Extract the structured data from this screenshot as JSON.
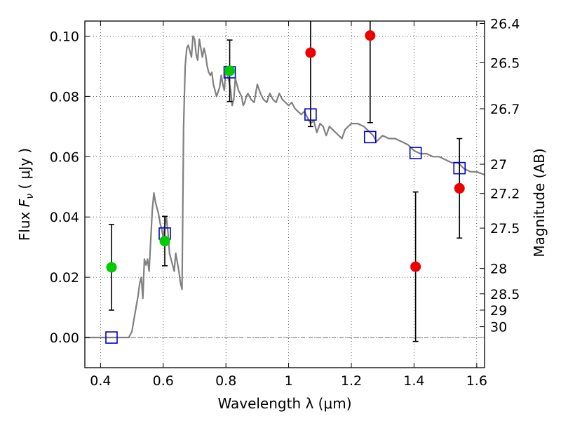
{
  "chart_data": {
    "type": "scatter",
    "xlabel": "Wavelength  λ (μm)",
    "ylabel": "Flux  F_ν  ( μJy )",
    "ylabel_parts": {
      "pre": "Flux  ",
      "sym": "F",
      "sub": "ν",
      "post": "  (  μJy )"
    },
    "y2label": "Magnitude (AB)",
    "xlim": [
      0.35,
      1.625
    ],
    "ylim": [
      -0.01,
      0.105
    ],
    "grid": true,
    "grid_style": "dotted",
    "x_ticks": [
      0.4,
      0.6,
      0.8,
      1.0,
      1.2,
      1.4,
      1.6
    ],
    "x_tick_labels": [
      "0.4",
      "0.6",
      "0.8",
      "1",
      "1.2",
      "1.4",
      "1.6"
    ],
    "y_ticks": [
      0.0,
      0.02,
      0.04,
      0.06,
      0.08,
      0.1
    ],
    "y_tick_labels": [
      "0.00",
      "0.02",
      "0.04",
      "0.06",
      "0.08",
      "0.10"
    ],
    "y2_ticks": [
      {
        "flux": 0.1042,
        "label": "26.4"
      },
      {
        "flux": 0.0912,
        "label": "26.5"
      },
      {
        "flux": 0.0759,
        "label": "26.7"
      },
      {
        "flux": 0.0575,
        "label": "27"
      },
      {
        "flux": 0.0478,
        "label": "27.2"
      },
      {
        "flux": 0.0363,
        "label": "27.5"
      },
      {
        "flux": 0.0229,
        "label": "28"
      },
      {
        "flux": 0.0145,
        "label": "28.5"
      },
      {
        "flux": 0.0091,
        "label": "29"
      },
      {
        "flux": 0.0036,
        "label": "30"
      }
    ],
    "zero_line": 0.0,
    "model_spectrum": {
      "color": "#808080",
      "x": [
        0.35,
        0.49,
        0.5,
        0.51,
        0.52,
        0.525,
        0.53,
        0.535,
        0.54,
        0.545,
        0.55,
        0.555,
        0.56,
        0.565,
        0.57,
        0.575,
        0.58,
        0.585,
        0.59,
        0.595,
        0.6,
        0.605,
        0.61,
        0.615,
        0.62,
        0.625,
        0.63,
        0.635,
        0.64,
        0.645,
        0.65,
        0.655,
        0.66,
        0.665,
        0.67,
        0.675,
        0.68,
        0.685,
        0.69,
        0.695,
        0.7,
        0.705,
        0.71,
        0.715,
        0.72,
        0.725,
        0.73,
        0.735,
        0.74,
        0.745,
        0.75,
        0.755,
        0.76,
        0.77,
        0.78,
        0.785,
        0.79,
        0.795,
        0.8,
        0.805,
        0.81,
        0.815,
        0.82,
        0.825,
        0.83,
        0.84,
        0.85,
        0.855,
        0.86,
        0.865,
        0.87,
        0.875,
        0.88,
        0.89,
        0.9,
        0.91,
        0.92,
        0.93,
        0.94,
        0.95,
        0.96,
        0.97,
        0.98,
        0.99,
        1.0,
        1.01,
        1.02,
        1.03,
        1.04,
        1.05,
        1.06,
        1.07,
        1.08,
        1.09,
        1.1,
        1.11,
        1.12,
        1.13,
        1.14,
        1.15,
        1.16,
        1.17,
        1.18,
        1.19,
        1.2,
        1.22,
        1.24,
        1.26,
        1.27,
        1.28,
        1.3,
        1.32,
        1.34,
        1.36,
        1.38,
        1.4,
        1.42,
        1.44,
        1.46,
        1.48,
        1.5,
        1.52,
        1.54,
        1.56,
        1.58,
        1.6,
        1.625
      ],
      "y": [
        0.0,
        0.0,
        0.002,
        0.008,
        0.014,
        0.018,
        0.02,
        0.013,
        0.026,
        0.024,
        0.026,
        0.022,
        0.032,
        0.042,
        0.048,
        0.045,
        0.043,
        0.041,
        0.038,
        0.036,
        0.033,
        0.037,
        0.04,
        0.035,
        0.028,
        0.026,
        0.024,
        0.022,
        0.028,
        0.025,
        0.022,
        0.018,
        0.016,
        0.07,
        0.09,
        0.096,
        0.097,
        0.095,
        0.093,
        0.1,
        0.099,
        0.094,
        0.092,
        0.099,
        0.096,
        0.093,
        0.096,
        0.094,
        0.09,
        0.088,
        0.087,
        0.088,
        0.084,
        0.08,
        0.083,
        0.087,
        0.084,
        0.082,
        0.09,
        0.087,
        0.085,
        0.082,
        0.077,
        0.079,
        0.086,
        0.082,
        0.08,
        0.077,
        0.078,
        0.08,
        0.081,
        0.08,
        0.079,
        0.078,
        0.084,
        0.081,
        0.079,
        0.078,
        0.081,
        0.079,
        0.078,
        0.081,
        0.079,
        0.078,
        0.077,
        0.078,
        0.076,
        0.075,
        0.074,
        0.075,
        0.073,
        0.071,
        0.072,
        0.068,
        0.071,
        0.07,
        0.067,
        0.07,
        0.069,
        0.068,
        0.067,
        0.066,
        0.069,
        0.07,
        0.071,
        0.071,
        0.07,
        0.068,
        0.067,
        0.065,
        0.067,
        0.066,
        0.066,
        0.065,
        0.064,
        0.062,
        0.061,
        0.061,
        0.06,
        0.06,
        0.059,
        0.058,
        0.058,
        0.056,
        0.055,
        0.055,
        0.054
      ]
    },
    "model_photometry": {
      "color": "#0000cc",
      "marker": "square-open",
      "points": [
        {
          "x": 0.435,
          "y": 0.0
        },
        {
          "x": 0.605,
          "y": 0.0345
        },
        {
          "x": 0.812,
          "y": 0.088
        },
        {
          "x": 1.07,
          "y": 0.074
        },
        {
          "x": 1.26,
          "y": 0.0665
        },
        {
          "x": 1.405,
          "y": 0.0612
        },
        {
          "x": 1.545,
          "y": 0.0562
        }
      ]
    },
    "detections": {
      "color": "#00cc00",
      "marker": "circle",
      "points": [
        {
          "x": 0.435,
          "y": 0.0233,
          "err": 0.0142
        },
        {
          "x": 0.605,
          "y": 0.032,
          "err": 0.0082
        },
        {
          "x": 0.812,
          "y": 0.0885,
          "err": 0.0102
        }
      ]
    },
    "non_detections": {
      "color": "#ee0000",
      "marker": "circle",
      "points": [
        {
          "x": 1.07,
          "y": 0.0945,
          "err": 0.0245
        },
        {
          "x": 1.26,
          "y": 0.1002,
          "err": 0.0289
        },
        {
          "x": 1.405,
          "y": 0.0235,
          "err": 0.0248
        },
        {
          "x": 1.545,
          "y": 0.0495,
          "err": 0.0165
        }
      ]
    }
  }
}
